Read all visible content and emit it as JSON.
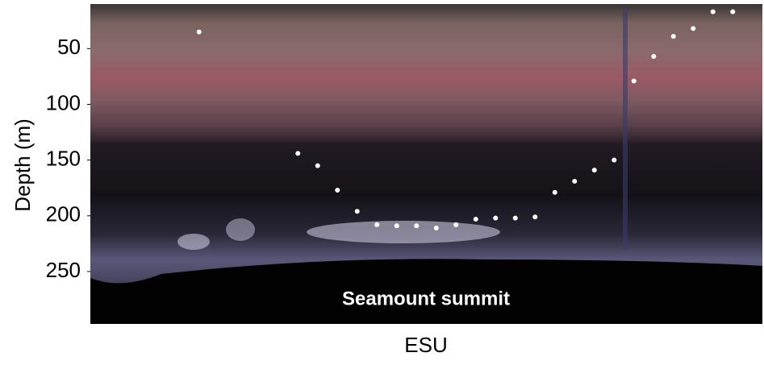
{
  "chart_data": {
    "type": "line",
    "ylabel": "Depth (m)",
    "xlabel": "ESU",
    "annotation": "Seamount summit",
    "ylim": [
      10,
      297
    ],
    "y_inverted": true,
    "yticks": [
      50,
      100,
      150,
      200,
      250
    ],
    "categories": [
      null,
      null,
      null,
      null,
      null,
      null,
      null,
      null,
      null,
      null,
      null,
      null,
      null,
      null,
      null,
      null,
      null,
      null,
      null,
      null,
      null,
      null,
      null,
      null,
      null,
      null,
      null,
      null,
      null,
      null,
      null,
      null,
      null,
      null
    ],
    "series": [
      {
        "color": "#ffffff",
        "values": [
          null,
          null,
          null,
          null,
          null,
          35,
          null,
          null,
          null,
          null,
          144,
          155,
          177,
          196,
          208,
          209,
          209,
          211,
          208,
          203,
          202,
          202,
          201,
          179,
          169,
          159,
          150,
          79,
          57,
          39,
          32,
          17,
          17,
          null
        ]
      }
    ]
  }
}
